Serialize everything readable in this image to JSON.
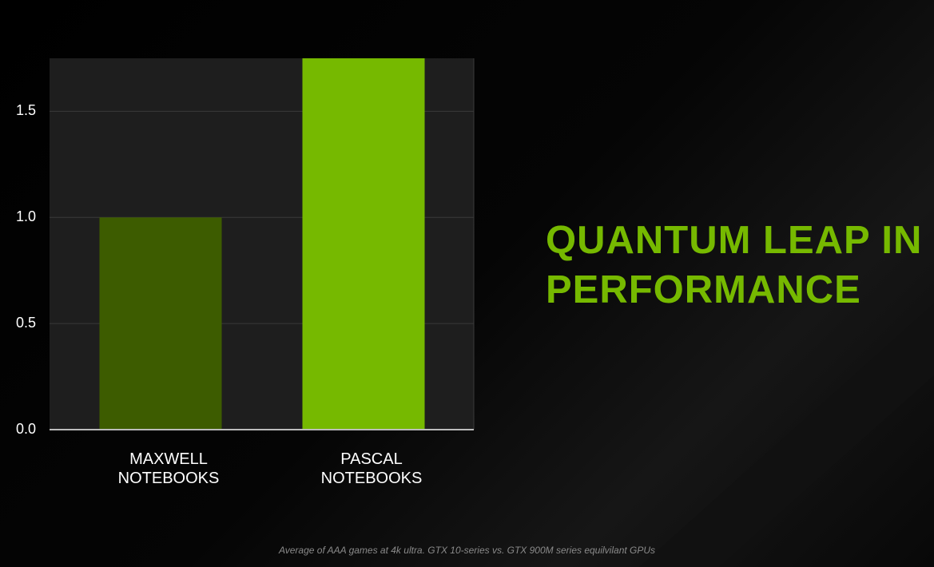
{
  "chart_data": {
    "type": "bar",
    "title": "QUANTUM LEAP IN PERFORMANCE",
    "footnote": "Average of AAA games at 4k ultra. GTX 10-series vs. GTX 900M series equilvilant GPUs",
    "categories": [
      "MAXWELL NOTEBOOKS",
      "PASCAL NOTEBOOKS"
    ],
    "values": [
      1.0,
      1.75
    ],
    "colors": [
      "#3d5c00",
      "#76b900"
    ],
    "ylim": [
      0,
      1.75
    ],
    "yticks": [
      {
        "value": 0,
        "label": "0.0"
      },
      0.5,
      {
        "value": 1,
        "label": "1.0"
      },
      1.5
    ],
    "grid": true
  }
}
